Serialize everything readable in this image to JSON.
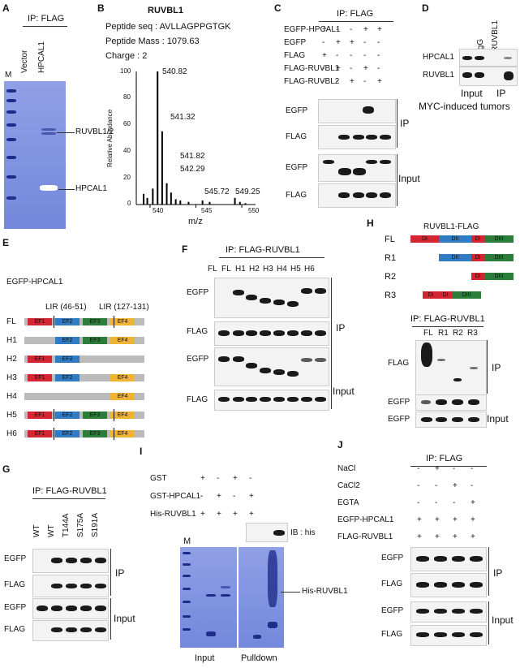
{
  "panelA": {
    "letter": "A",
    "ip": "IP: FLAG",
    "lanes": [
      "M",
      "Vector",
      "HPCAL1"
    ],
    "arrows": [
      "RUVBL1/2",
      "HPCAL1"
    ]
  },
  "panelB": {
    "letter": "B",
    "title": "RUVBL1",
    "seq": "Peptide seq : AVLLAGPPGTGK",
    "mass": "Peptide Mass : 1079.63",
    "charge": "Charge : 2",
    "ylabel": "Relative Abundance",
    "xlabel": "m/z",
    "yticks": [
      "100",
      "80",
      "60",
      "40",
      "20",
      "0"
    ],
    "xticks": [
      "540",
      "545",
      "550"
    ],
    "peaks": [
      "540.82",
      "541.32",
      "541.82",
      "542.29",
      "545.72",
      "549.25"
    ]
  },
  "panelC": {
    "letter": "C",
    "ip": "IP: FLAG",
    "rows": [
      {
        "label": "EGFP-HPCAL1",
        "signs": [
          "+",
          "-",
          "-",
          "+",
          "+"
        ]
      },
      {
        "label": "EGFP",
        "signs": [
          "-",
          "+",
          "+",
          "-",
          "-"
        ]
      },
      {
        "label": "FLAG",
        "signs": [
          "+",
          "-",
          "-",
          "-",
          "-"
        ]
      },
      {
        "label": "FLAG-RUVBL1",
        "signs": [
          "-",
          "+",
          "-",
          "+",
          "-"
        ]
      },
      {
        "label": "FLAG-RUVBL2",
        "signs": [
          "-",
          "-",
          "+",
          "-",
          "+"
        ]
      }
    ],
    "blots": [
      "EGFP",
      "FLAG",
      "EGFP",
      "FLAG"
    ],
    "groups": [
      "IP",
      "Input"
    ]
  },
  "panelD": {
    "letter": "D",
    "lanes": [
      "IgG",
      "RUVBL1"
    ],
    "blots": [
      "HPCAL1",
      "RUVBL1"
    ],
    "groups": [
      "Input",
      "IP"
    ],
    "caption": "MYC-induced tumors"
  },
  "panelE": {
    "letter": "E",
    "title": "EGFP-HPCAL1",
    "lir1": "LIR (46-51)",
    "lir2": "LIR (127-131)",
    "rows": [
      "FL",
      "H1",
      "H2",
      "H3",
      "H4",
      "H5",
      "H6"
    ],
    "domains": [
      "EF1",
      "EF2",
      "EF3",
      "EF4"
    ]
  },
  "panelF": {
    "letter": "F",
    "ip": "IP: FLAG-RUVBL1",
    "lanes": [
      "FL",
      "FL",
      "H1",
      "H2",
      "H3",
      "H4",
      "H5",
      "H6"
    ],
    "blots": [
      "EGFP",
      "FLAG",
      "EGFP",
      "FLAG"
    ],
    "groups": [
      "IP",
      "Input"
    ]
  },
  "panelG": {
    "letter": "G",
    "ip": "IP: FLAG-RUVBL1",
    "lanes": [
      "WT",
      "WT",
      "T144A",
      "S175A",
      "S191A"
    ],
    "blots": [
      "EGFP",
      "FLAG",
      "EGFP",
      "FLAG"
    ],
    "groups": [
      "IP",
      "Input"
    ]
  },
  "panelH": {
    "letter": "H",
    "title": "RUVBL1-FLAG",
    "rows": [
      "FL",
      "R1",
      "R2",
      "R3"
    ],
    "domains": [
      "DI",
      "DII",
      "DIII"
    ],
    "ip": "IP: FLAG-RUVBL1",
    "lanes": [
      "FL",
      "R1",
      "R2",
      "R3"
    ],
    "blots": [
      "FLAG",
      "EGFP",
      "EGFP"
    ],
    "groups": [
      "IP",
      "Input"
    ]
  },
  "panelI": {
    "letter": "I",
    "rows": [
      {
        "label": "GST",
        "signs": [
          "+",
          "-",
          "+",
          "-"
        ]
      },
      {
        "label": "GST-HPCAL1",
        "signs": [
          "-",
          "+",
          "-",
          "+"
        ]
      },
      {
        "label": "His-RUVBL1",
        "signs": [
          "+",
          "+",
          "+",
          "+"
        ]
      }
    ],
    "ib": "IB : his",
    "marker": "M",
    "arrow": "His-RUVBL1",
    "groups": [
      "Input",
      "Pulldown"
    ]
  },
  "panelJ": {
    "letter": "J",
    "ip": "IP: FLAG",
    "rows": [
      {
        "label": "NaCl",
        "signs": [
          "-",
          "+",
          "-",
          "-"
        ]
      },
      {
        "label": "CaCl2",
        "signs": [
          "-",
          "-",
          "+",
          "-"
        ]
      },
      {
        "label": "EGTA",
        "signs": [
          "-",
          "-",
          "-",
          "+"
        ]
      },
      {
        "label": "EGFP-HPCAL1",
        "signs": [
          "+",
          "+",
          "+",
          "+"
        ]
      },
      {
        "label": "FLAG-RUVBL1",
        "signs": [
          "+",
          "+",
          "+",
          "+"
        ]
      }
    ],
    "blots": [
      "EGFP",
      "FLAG",
      "EGFP",
      "FLAG"
    ],
    "groups": [
      "IP",
      "Input"
    ]
  }
}
